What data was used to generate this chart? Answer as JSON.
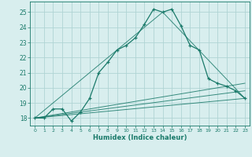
{
  "xlabel": "Humidex (Indice chaleur)",
  "bg_color": "#d8eeee",
  "grid_color": "#b0d4d4",
  "line_color": "#1a7a6a",
  "line_color2": "#2a9a8a",
  "xlim": [
    -0.5,
    23.5
  ],
  "ylim": [
    17.5,
    25.7
  ],
  "xticks": [
    0,
    1,
    2,
    3,
    4,
    5,
    6,
    7,
    8,
    9,
    10,
    11,
    12,
    13,
    14,
    15,
    16,
    17,
    18,
    19,
    20,
    21,
    22,
    23
  ],
  "yticks": [
    18,
    19,
    20,
    21,
    22,
    23,
    24,
    25
  ],
  "main_series": {
    "x": [
      0,
      1,
      2,
      3,
      4,
      5,
      6,
      7,
      8,
      9,
      10,
      11,
      12,
      13,
      14,
      15,
      16,
      17,
      18,
      19,
      20,
      21,
      22,
      23
    ],
    "y": [
      18.0,
      18.0,
      18.6,
      18.6,
      17.8,
      18.4,
      19.3,
      21.0,
      21.7,
      22.5,
      22.8,
      23.3,
      24.2,
      25.2,
      25.0,
      25.2,
      24.1,
      22.8,
      22.5,
      20.6,
      20.3,
      20.1,
      19.8,
      19.3
    ]
  },
  "envelope_lines": [
    {
      "x": [
        0,
        23
      ],
      "y": [
        18.0,
        19.3
      ]
    },
    {
      "x": [
        0,
        14,
        23
      ],
      "y": [
        18.0,
        25.0,
        19.3
      ]
    },
    {
      "x": [
        0,
        23
      ],
      "y": [
        18.0,
        19.8
      ]
    },
    {
      "x": [
        0,
        23
      ],
      "y": [
        18.0,
        20.3
      ]
    }
  ]
}
